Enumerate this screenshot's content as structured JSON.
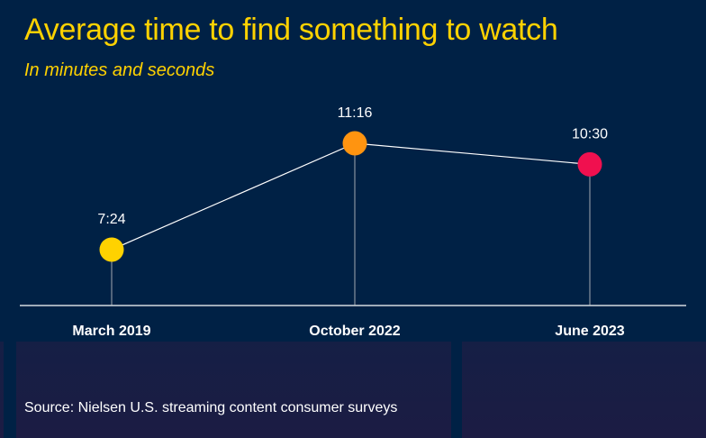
{
  "title": "Average time to find something to watch",
  "subtitle": "In minutes and seconds",
  "source": "Source: Nielsen U.S. streaming content consumer surveys",
  "chart_data": {
    "type": "line",
    "title": "Average time to find something to watch",
    "subtitle": "In minutes and seconds",
    "categories": [
      "March 2019",
      "October 2022",
      "June 2023"
    ],
    "values": [
      "7:24",
      "11:16",
      "10:30"
    ],
    "values_seconds": [
      444,
      676,
      630
    ],
    "point_colors": [
      "#ffd200",
      "#ff9410",
      "#f0104f"
    ],
    "grid": false,
    "legend": "none"
  }
}
